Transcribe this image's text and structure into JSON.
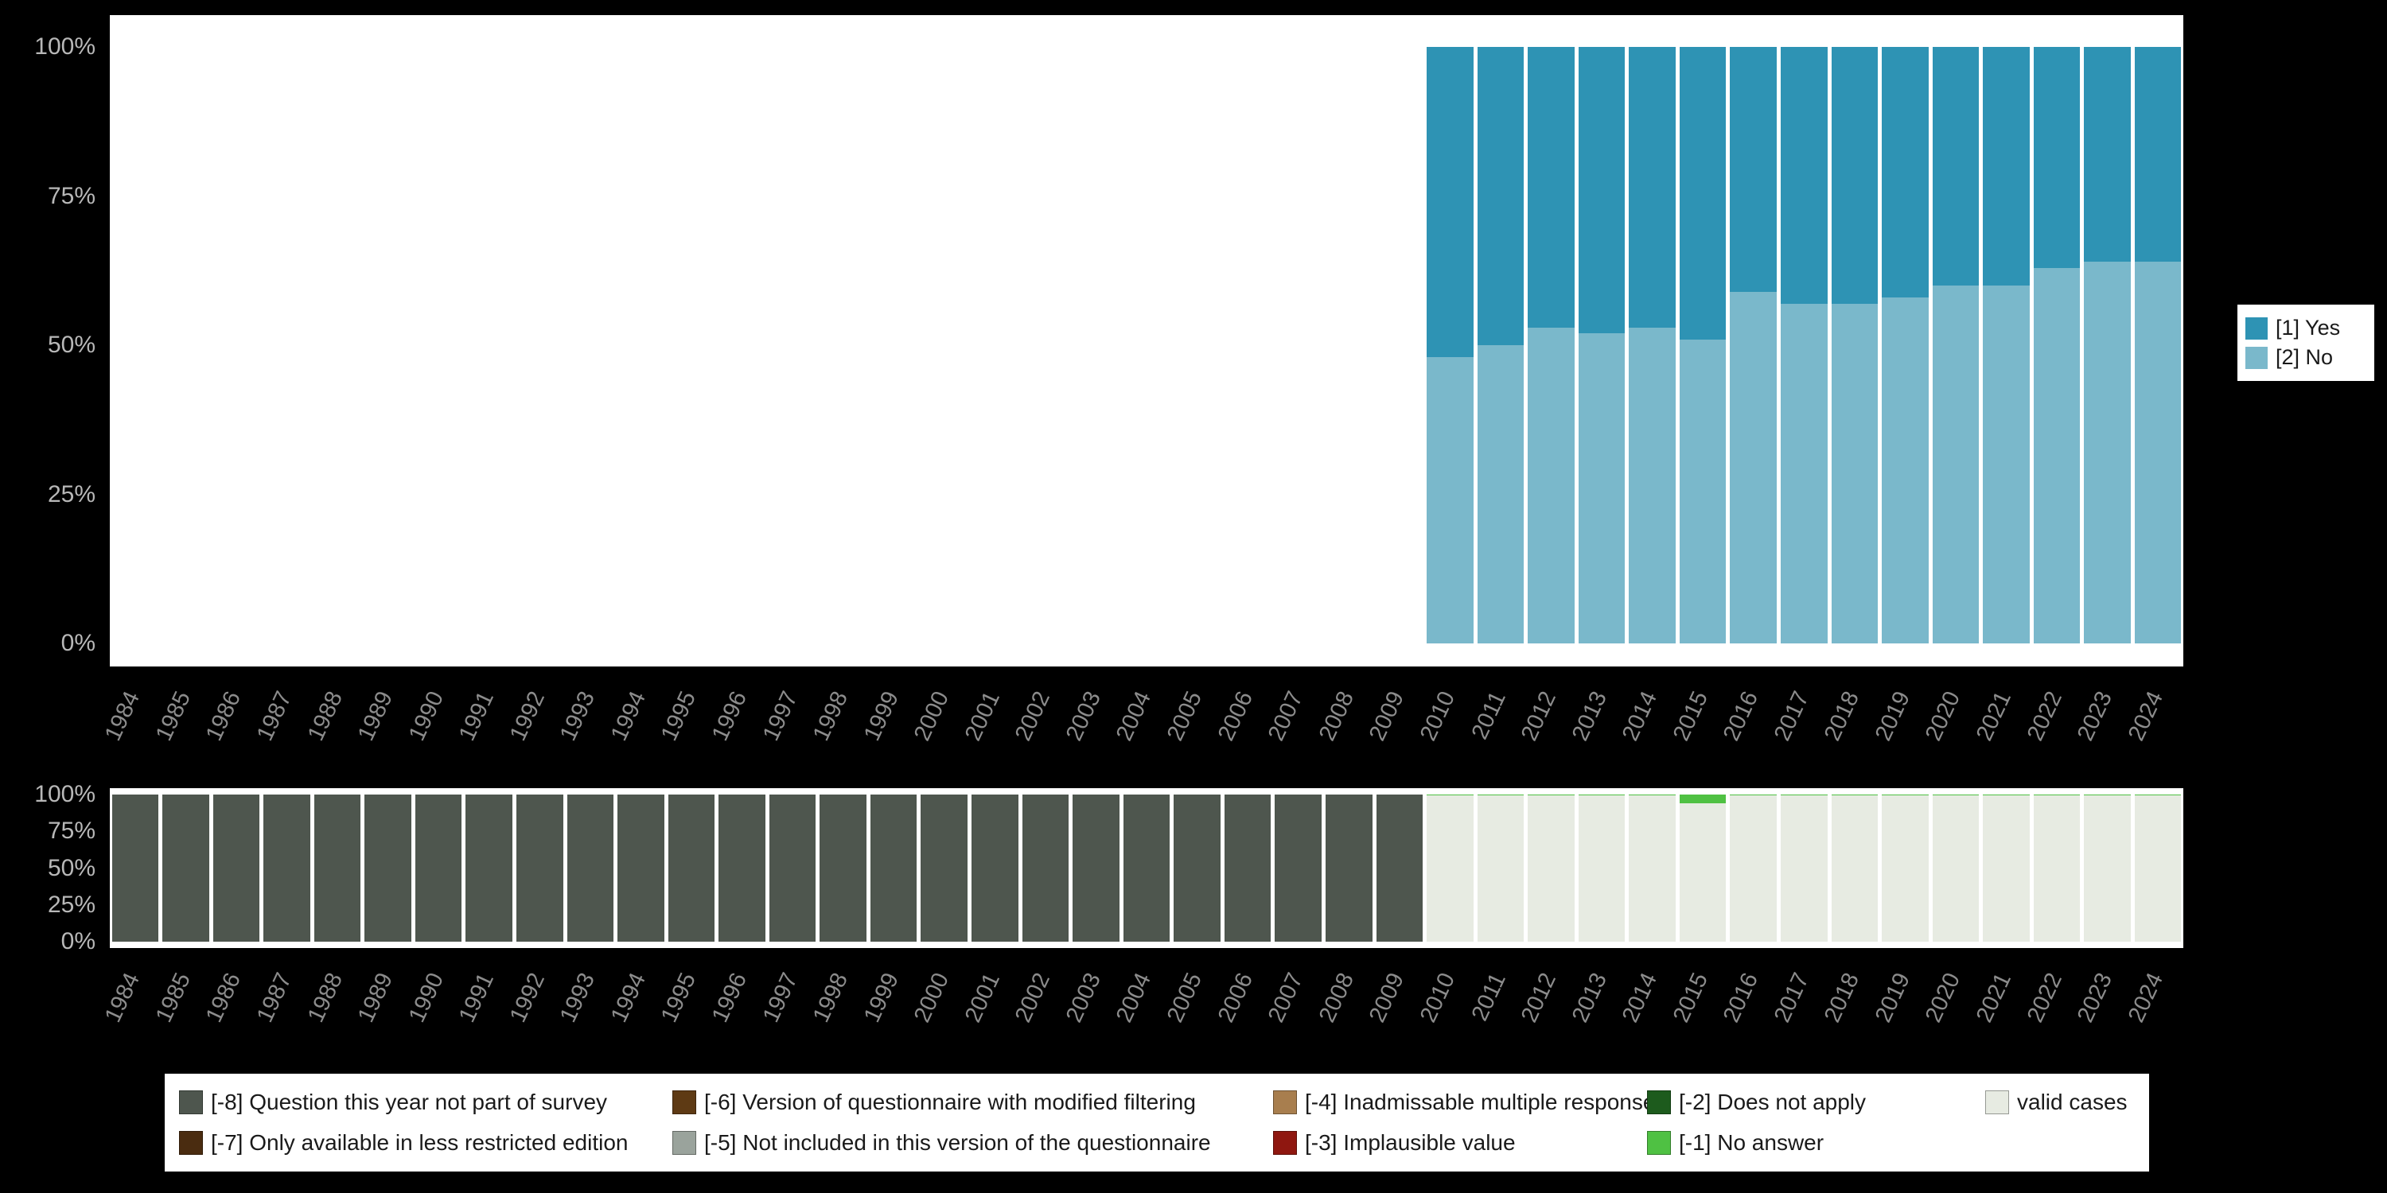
{
  "background": "#000000",
  "panel_color": "#ffffff",
  "axis": {
    "ytick_color": "#b8b8b8",
    "xtick_color": "#8c8c8c"
  },
  "chart_data": [
    {
      "id": "categories-over-time",
      "type": "bar",
      "stacked": true,
      "title": "",
      "xlabel": "",
      "ylabel": "",
      "ylim": [
        0,
        100
      ],
      "yticks": [
        0,
        25,
        50,
        75,
        100
      ],
      "ytick_format": "percent",
      "legend_position": "right",
      "categories": [
        "1984",
        "1985",
        "1986",
        "1987",
        "1988",
        "1989",
        "1990",
        "1991",
        "1992",
        "1993",
        "1994",
        "1995",
        "1996",
        "1997",
        "1998",
        "1999",
        "2000",
        "2001",
        "2002",
        "2003",
        "2004",
        "2005",
        "2006",
        "2007",
        "2008",
        "2009",
        "2010",
        "2011",
        "2012",
        "2013",
        "2014",
        "2015",
        "2016",
        "2017",
        "2018",
        "2019",
        "2020",
        "2021",
        "2022",
        "2023",
        "2024"
      ],
      "series": [
        {
          "name": "[2] No",
          "color": "#7ab8cb",
          "values": [
            null,
            null,
            null,
            null,
            null,
            null,
            null,
            null,
            null,
            null,
            null,
            null,
            null,
            null,
            null,
            null,
            null,
            null,
            null,
            null,
            null,
            null,
            null,
            null,
            null,
            null,
            48,
            50,
            53,
            52,
            53,
            51,
            59,
            57,
            57,
            58,
            60,
            60,
            63,
            64,
            64
          ]
        },
        {
          "name": "[1] Yes",
          "color": "#2e93b4",
          "values": [
            null,
            null,
            null,
            null,
            null,
            null,
            null,
            null,
            null,
            null,
            null,
            null,
            null,
            null,
            null,
            null,
            null,
            null,
            null,
            null,
            null,
            null,
            null,
            null,
            null,
            null,
            52,
            50,
            47,
            48,
            47,
            49,
            41,
            43,
            43,
            42,
            40,
            40,
            37,
            36,
            36
          ]
        }
      ],
      "legend": [
        {
          "label": "[1] Yes",
          "color": "#2e93b4"
        },
        {
          "label": "[2] No",
          "color": "#7ab8cb"
        }
      ]
    },
    {
      "id": "missing-values-over-time",
      "type": "bar",
      "stacked": true,
      "title": "",
      "xlabel": "",
      "ylabel": "",
      "ylim": [
        0,
        100
      ],
      "yticks": [
        0,
        25,
        50,
        75,
        100
      ],
      "ytick_format": "percent",
      "legend_position": "bottom",
      "categories": [
        "1984",
        "1985",
        "1986",
        "1987",
        "1988",
        "1989",
        "1990",
        "1991",
        "1992",
        "1993",
        "1994",
        "1995",
        "1996",
        "1997",
        "1998",
        "1999",
        "2000",
        "2001",
        "2002",
        "2003",
        "2004",
        "2005",
        "2006",
        "2007",
        "2008",
        "2009",
        "2010",
        "2011",
        "2012",
        "2013",
        "2014",
        "2015",
        "2016",
        "2017",
        "2018",
        "2019",
        "2020",
        "2021",
        "2022",
        "2023",
        "2024"
      ],
      "series": [
        {
          "name": "[-8] Question this year not part of survey",
          "color": "#4e564e",
          "values": [
            100,
            100,
            100,
            100,
            100,
            100,
            100,
            100,
            100,
            100,
            100,
            100,
            100,
            100,
            100,
            100,
            100,
            100,
            100,
            100,
            100,
            100,
            100,
            100,
            100,
            100,
            null,
            null,
            null,
            null,
            null,
            null,
            null,
            null,
            null,
            null,
            null,
            null,
            null,
            null,
            null
          ]
        },
        {
          "name": "valid cases",
          "color": "#e7ebe2",
          "values": [
            null,
            null,
            null,
            null,
            null,
            null,
            null,
            null,
            null,
            null,
            null,
            null,
            null,
            null,
            null,
            null,
            null,
            null,
            null,
            null,
            null,
            null,
            null,
            null,
            null,
            null,
            99.6,
            99.6,
            99.6,
            99.5,
            99.2,
            94,
            99.2,
            99.3,
            99.4,
            99.4,
            99.2,
            99.5,
            99.6,
            99.4,
            99.6
          ]
        },
        {
          "name": "[-1] No answer",
          "color": "#4fc143",
          "values": [
            null,
            null,
            null,
            null,
            null,
            null,
            null,
            null,
            null,
            null,
            null,
            null,
            null,
            null,
            null,
            null,
            null,
            null,
            null,
            null,
            null,
            null,
            null,
            null,
            null,
            null,
            0.4,
            0.4,
            0.4,
            0.5,
            0.8,
            6,
            0.8,
            0.7,
            0.6,
            0.6,
            0.8,
            0.5,
            0.4,
            0.6,
            0.4
          ]
        }
      ]
    }
  ],
  "missing_legend": {
    "items": [
      {
        "label": "[-8] Question this year not part of survey",
        "color": "#4e564e"
      },
      {
        "label": "[-7] Only available in less restricted edition",
        "color": "#4a2c10"
      },
      {
        "label": "[-6] Version of questionnaire with modified filtering",
        "color": "#5e3a14"
      },
      {
        "label": "[-5] Not included in this version of the questionnaire",
        "color": "#9aa39c"
      },
      {
        "label": "[-4] Inadmissable multiple response",
        "color": "#a87e4e"
      },
      {
        "label": "[-3] Implausible value",
        "color": "#8f1710"
      },
      {
        "label": "[-2] Does not apply",
        "color": "#1d5b1d"
      },
      {
        "label": "[-1] No answer",
        "color": "#4fc143"
      },
      {
        "label": "valid cases",
        "color": "#e7ebe2"
      }
    ]
  }
}
